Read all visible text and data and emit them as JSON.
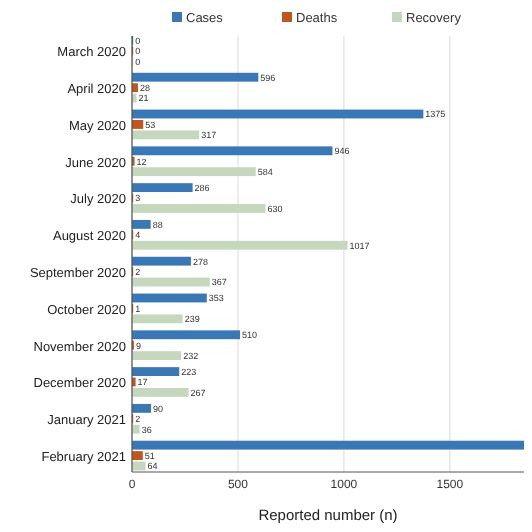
{
  "chart_data": {
    "type": "bar",
    "orientation": "horizontal",
    "xlabel": "Reported number (n)",
    "categories": [
      "March 2020",
      "April 2020",
      "May 2020",
      "June 2020",
      "July 2020",
      "August 2020",
      "September 2020",
      "October 2020",
      "November 2020",
      "December 2020",
      "January 2021",
      "February 2021"
    ],
    "series": [
      {
        "name": "Cases",
        "color": "#3a78b5",
        "values": [
          0,
          596,
          1375,
          946,
          286,
          88,
          278,
          353,
          510,
          223,
          90,
          1850
        ],
        "value_labels": [
          "0",
          "596",
          "1375",
          "946",
          "286",
          "88",
          "278",
          "353",
          "510",
          "223",
          "90",
          null
        ]
      },
      {
        "name": "Deaths",
        "color": "#c0561b",
        "values": [
          0,
          28,
          53,
          12,
          3,
          4,
          2,
          1,
          9,
          17,
          2,
          51
        ],
        "value_labels": [
          "0",
          "28",
          "53",
          "12",
          "3",
          "4",
          "2",
          "1",
          "9",
          "17",
          "2",
          "51"
        ]
      },
      {
        "name": "Recovery",
        "color": "#c5d8bd",
        "values": [
          0,
          21,
          317,
          584,
          630,
          1017,
          367,
          239,
          232,
          267,
          36,
          64
        ],
        "value_labels": [
          "0",
          "21",
          "317",
          "584",
          "630",
          "1017",
          "367",
          "239",
          "232",
          "267",
          "36",
          "64"
        ]
      }
    ],
    "xlim": [
      0,
      1850
    ],
    "xticks": [
      0,
      500,
      1000,
      1500
    ],
    "grid": "x",
    "legend": "top"
  }
}
